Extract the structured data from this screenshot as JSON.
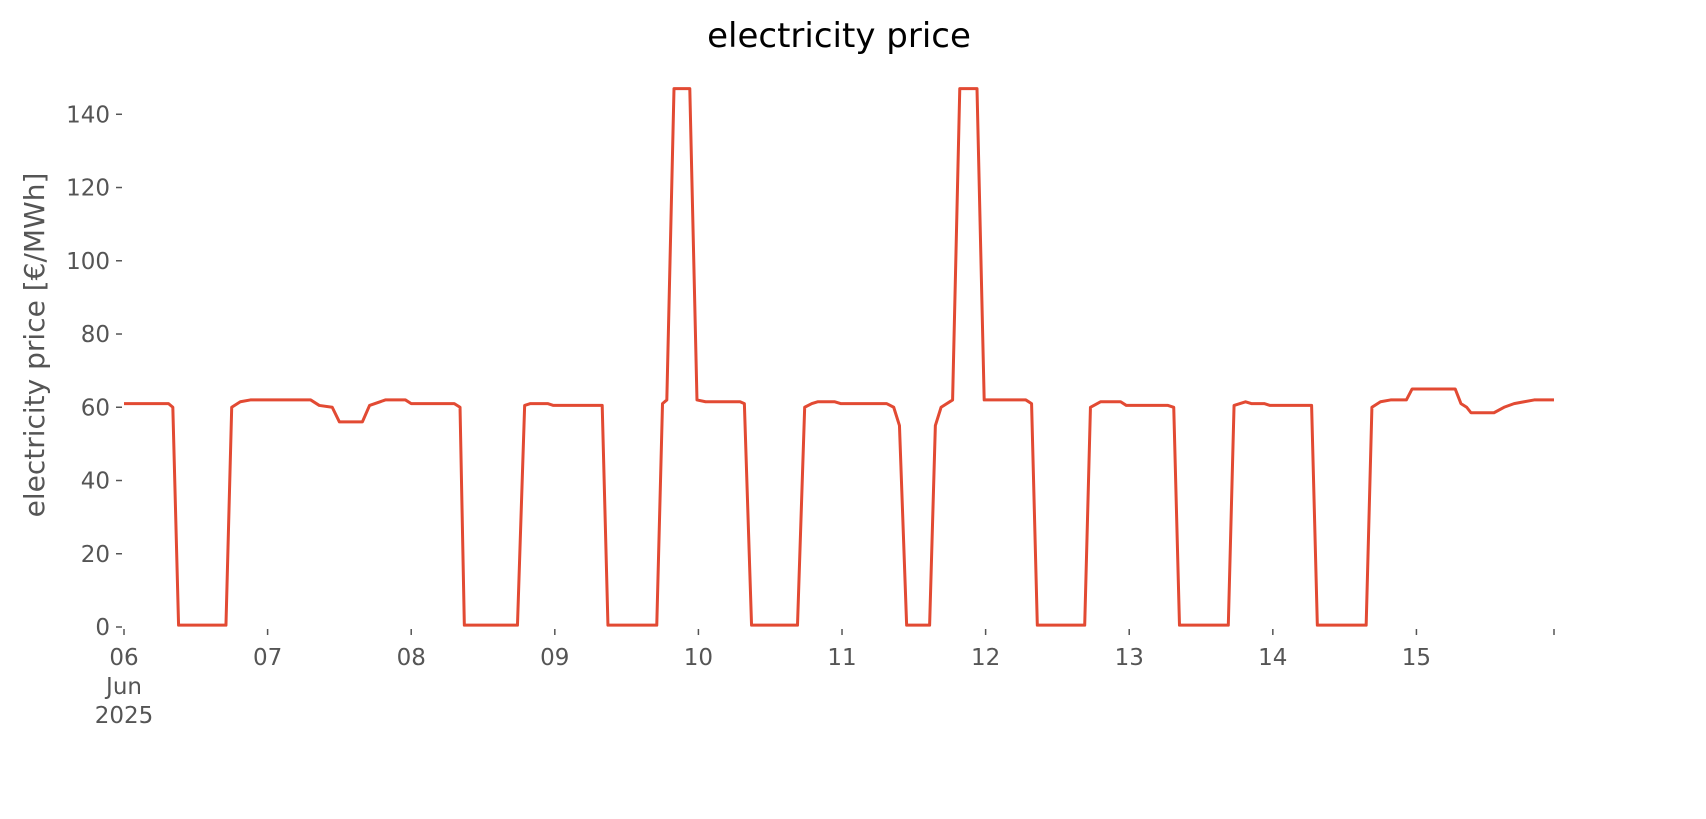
{
  "chart_data": {
    "type": "line",
    "title": "electricity price",
    "ylabel": "electricity price [€/MWh]",
    "color": "#e24a33",
    "x": [
      6.0,
      6.31,
      6.34,
      6.38,
      6.71,
      6.75,
      6.81,
      6.88,
      6.92,
      7.3,
      7.36,
      7.45,
      7.5,
      7.66,
      7.71,
      7.82,
      7.96,
      8.0,
      8.3,
      8.34,
      8.37,
      8.74,
      8.79,
      8.83,
      8.95,
      8.99,
      9.33,
      9.37,
      9.71,
      9.75,
      9.78,
      9.83,
      9.94,
      9.99,
      10.05,
      10.29,
      10.32,
      10.37,
      10.69,
      10.74,
      10.79,
      10.83,
      10.95,
      10.99,
      11.31,
      11.36,
      11.4,
      11.45,
      11.61,
      11.65,
      11.69,
      11.77,
      11.82,
      11.94,
      11.99,
      12.28,
      12.32,
      12.36,
      12.69,
      12.73,
      12.8,
      12.94,
      12.98,
      13.27,
      13.31,
      13.35,
      13.69,
      13.73,
      13.81,
      13.85,
      13.94,
      13.98,
      14.27,
      14.31,
      14.65,
      14.69,
      14.75,
      14.82,
      14.93,
      14.97,
      15.27,
      15.31,
      15.35,
      15.38,
      15.54,
      15.61,
      15.68,
      15.75,
      15.82,
      15.958
    ],
    "values": [
      61,
      61,
      60,
      0.5,
      0.5,
      60,
      61.5,
      62,
      62,
      62,
      60.5,
      60,
      56,
      56,
      60.5,
      62,
      62,
      61,
      61,
      60,
      0.5,
      0.5,
      60.5,
      61,
      61,
      60.5,
      60.5,
      0.5,
      0.5,
      61,
      62,
      147,
      147,
      62,
      61.5,
      61.5,
      61,
      0.5,
      0.5,
      60,
      61,
      61.5,
      61.5,
      61,
      61,
      60,
      55,
      0.5,
      0.5,
      55,
      60,
      62,
      147,
      147,
      62,
      62,
      61,
      0.5,
      0.5,
      60,
      61.5,
      61.5,
      60.5,
      60.5,
      60,
      0.5,
      0.5,
      60.5,
      61.5,
      61,
      61,
      60.5,
      60.5,
      0.5,
      0.5,
      60,
      61.5,
      62,
      62,
      65,
      65,
      61,
      60,
      58.5,
      58.5,
      60,
      61,
      61.5,
      62,
      62
    ],
    "xlim": [
      6,
      15.958
    ],
    "xticks": [
      {
        "value": 6,
        "label": "06 Jun 2025"
      },
      {
        "value": 7,
        "label": "07"
      },
      {
        "value": 8,
        "label": "08"
      },
      {
        "value": 9,
        "label": "09"
      },
      {
        "value": 10,
        "label": "10"
      },
      {
        "value": 11,
        "label": "11"
      },
      {
        "value": 12,
        "label": "12"
      },
      {
        "value": 13,
        "label": "13"
      },
      {
        "value": 14,
        "label": "14"
      },
      {
        "value": 15,
        "label": "15"
      },
      {
        "value": 15.958,
        "label": null
      }
    ],
    "ylim": [
      0,
      154
    ],
    "yticks": [
      0,
      20,
      40,
      60,
      80,
      100,
      120,
      140
    ]
  }
}
